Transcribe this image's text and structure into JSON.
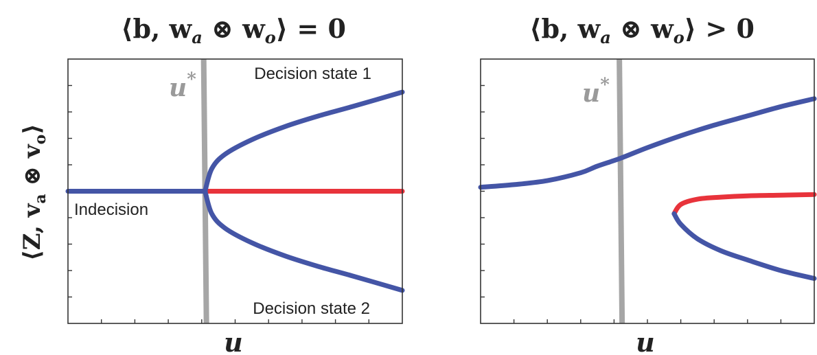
{
  "chart_data": [
    {
      "type": "line",
      "title": "⟨b, w_a ⊗ w_o⟩ = 0",
      "title_parts": {
        "pre": "⟨b, w",
        "sub1": "a",
        "mid": " ⊗ w",
        "sub2": "o",
        "post": "⟩ = 0"
      },
      "xlabel": "u",
      "ylabel": "⟨Z, v_a ⊗ v_o⟩",
      "ylabel_parts": {
        "pre": "⟨Z, v",
        "sub1": "a",
        "mid": " ⊗ v",
        "sub2": "o",
        "post": "⟩"
      },
      "xlim": [
        0,
        1
      ],
      "ylim": [
        -1,
        1
      ],
      "ticks_x": [
        0.1,
        0.2,
        0.3,
        0.4,
        0.5,
        0.6,
        0.7,
        0.8,
        0.9
      ],
      "ticks_y": [
        -0.8,
        -0.6,
        -0.4,
        -0.2,
        0,
        0.2,
        0.4,
        0.6,
        0.8
      ],
      "marker": {
        "label": "u*",
        "x": 0.41
      },
      "series": [
        {
          "color": "#4455a6",
          "x": [
            0,
            0.41
          ],
          "y": [
            0,
            0
          ]
        },
        {
          "color": "#e8333b",
          "x": [
            0.41,
            1.0
          ],
          "y": [
            0,
            0
          ]
        },
        {
          "color": "#4455a6",
          "x": [
            0.41,
            0.43,
            0.47,
            0.55,
            0.65,
            0.75,
            0.85,
            1.0
          ],
          "y": [
            0,
            0.17,
            0.28,
            0.39,
            0.49,
            0.57,
            0.64,
            0.75
          ]
        },
        {
          "color": "#4455a6",
          "x": [
            0.41,
            0.43,
            0.47,
            0.55,
            0.65,
            0.75,
            0.85,
            1.0
          ],
          "y": [
            0,
            -0.17,
            -0.28,
            -0.39,
            -0.49,
            -0.57,
            -0.64,
            -0.75
          ]
        }
      ],
      "annotations": {
        "state1": "Decision state 1",
        "state2": "Decision state 2",
        "indecision": "Indecision"
      }
    },
    {
      "type": "line",
      "title": "⟨b, w_a ⊗ w_o⟩ > 0",
      "title_parts": {
        "pre": "⟨b, w",
        "sub1": "a",
        "mid": " ⊗ w",
        "sub2": "o",
        "post": "⟩ > 0"
      },
      "xlabel": "u",
      "xlim": [
        0,
        1
      ],
      "ylim": [
        -1,
        1
      ],
      "ticks_x": [
        0.1,
        0.2,
        0.3,
        0.4,
        0.5,
        0.6,
        0.7,
        0.8,
        0.9
      ],
      "ticks_y": [
        -0.8,
        -0.6,
        -0.4,
        -0.2,
        0,
        0.2,
        0.4,
        0.6,
        0.8
      ],
      "marker": {
        "label": "u*",
        "x": 0.42
      },
      "series": [
        {
          "color": "#4455a6",
          "x": [
            0,
            0.1,
            0.2,
            0.3,
            0.35,
            0.42,
            0.5,
            0.6,
            0.7,
            0.8,
            0.9,
            1.0
          ],
          "y": [
            0.03,
            0.05,
            0.08,
            0.14,
            0.19,
            0.25,
            0.33,
            0.42,
            0.5,
            0.57,
            0.64,
            0.7
          ]
        },
        {
          "color": "#e8333b",
          "x": [
            0.58,
            0.6,
            0.65,
            0.72,
            0.8,
            0.9,
            1.0
          ],
          "y": [
            -0.17,
            -0.1,
            -0.06,
            -0.045,
            -0.035,
            -0.03,
            -0.025
          ]
        },
        {
          "color": "#4455a6",
          "x": [
            0.58,
            0.6,
            0.65,
            0.72,
            0.8,
            0.9,
            1.0
          ],
          "y": [
            -0.17,
            -0.25,
            -0.36,
            -0.45,
            -0.52,
            -0.6,
            -0.66
          ]
        }
      ]
    }
  ]
}
